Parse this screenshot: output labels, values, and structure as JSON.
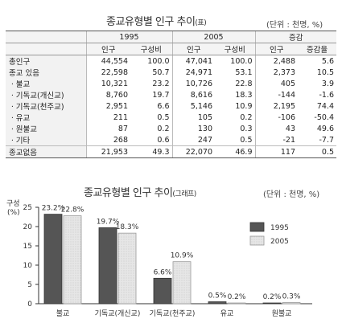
{
  "table": {
    "title": "종교유형별 인구 추이",
    "title_suffix": "(표)",
    "unit": "(단위 : 천명, %)",
    "years": [
      "1995",
      "2005",
      "증감"
    ],
    "subheaders": [
      "인구",
      "구성비",
      "인구",
      "구성비",
      "인구",
      "증감율"
    ],
    "rows": [
      {
        "label": "총인구",
        "values": [
          "44,554",
          "100.0",
          "47,041",
          "100.0",
          "2,488",
          "5.6"
        ]
      },
      {
        "label": "종교 있음",
        "values": [
          "22,598",
          "50.7",
          "24,971",
          "53.1",
          "2,373",
          "10.5"
        ]
      },
      {
        "label": "ㆍ불교",
        "values": [
          "10,321",
          "23.2",
          "10,726",
          "22.8",
          "405",
          "3.9"
        ]
      },
      {
        "label": "ㆍ기독교(개신교)",
        "values": [
          "8,760",
          "19.7",
          "8,616",
          "18.3",
          "-144",
          "-1.6"
        ]
      },
      {
        "label": "ㆍ기독교(천주교)",
        "values": [
          "2,951",
          "6.6",
          "5,146",
          "10.9",
          "2,195",
          "74.4"
        ]
      },
      {
        "label": "ㆍ유교",
        "values": [
          "211",
          "0.5",
          "105",
          "0.2",
          "-106",
          "-50.4"
        ]
      },
      {
        "label": "ㆍ원불교",
        "values": [
          "87",
          "0.2",
          "130",
          "0.3",
          "43",
          "49.6"
        ]
      },
      {
        "label": "ㆍ기타",
        "values": [
          "268",
          "0.6",
          "247",
          "0.5",
          "-21",
          "-7.7"
        ]
      },
      {
        "label": "종교없음",
        "values": [
          "21,953",
          "49.3",
          "22,070",
          "46.9",
          "117",
          "0.5"
        ]
      }
    ]
  },
  "chart_header": {
    "title": "종교유형별 인구 추이",
    "title_suffix": "(그래프)",
    "unit": "(단위 : 천명, %)"
  },
  "chart_data": {
    "type": "bar",
    "ylabel": "구성\n(%)",
    "ylim": [
      0,
      25
    ],
    "yticks": [
      0,
      5,
      10,
      15,
      20,
      25
    ],
    "categories": [
      "불교",
      "기독교(개신교)",
      "기독교(천주교)",
      "유교",
      "원불교"
    ],
    "series": [
      {
        "name": "1995",
        "values": [
          23.2,
          19.7,
          6.6,
          0.5,
          0.2
        ],
        "labels": [
          "23.2%",
          "19.7%",
          "6.6%",
          "0.5%",
          "0.2%"
        ],
        "color": "#555555"
      },
      {
        "name": "2005",
        "values": [
          22.8,
          18.3,
          10.9,
          0.2,
          0.3
        ],
        "labels": [
          "22.8%",
          "18.3%",
          "10.9%",
          "0.2%",
          "0.3%"
        ],
        "color": "#e6e6e6"
      }
    ],
    "legend_position": "right",
    "grid": false
  }
}
